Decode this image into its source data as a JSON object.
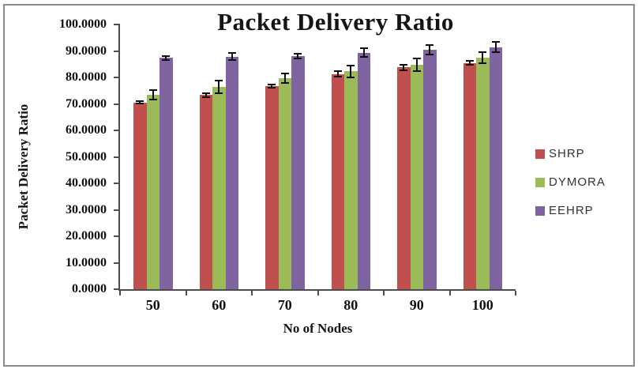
{
  "chart_data": {
    "type": "bar",
    "title": "Packet Delivery Ratio",
    "xlabel": "No of Nodes",
    "ylabel": "Packet Delivery Ratio",
    "categories": [
      "50",
      "60",
      "70",
      "80",
      "90",
      "100"
    ],
    "series": [
      {
        "name": "SHRP",
        "color": "#C0504D",
        "values": [
          70.5,
          73.3,
          76.7,
          81.3,
          83.8,
          85.5
        ],
        "errors": [
          0.8,
          1.1,
          0.8,
          1.3,
          1.4,
          1.0
        ]
      },
      {
        "name": "DYMORA",
        "color": "#9BBB59",
        "values": [
          73.4,
          76.3,
          79.7,
          82.3,
          84.8,
          87.6
        ],
        "errors": [
          2.2,
          2.7,
          2.0,
          2.6,
          2.8,
          2.4
        ]
      },
      {
        "name": "EEHRP",
        "color": "#8064A2",
        "values": [
          87.4,
          87.9,
          88.0,
          89.4,
          90.4,
          91.4
        ],
        "errors": [
          1.0,
          1.7,
          1.2,
          2.0,
          2.2,
          2.2
        ]
      }
    ],
    "ylim": [
      0,
      100
    ],
    "y_tick_step": 10,
    "y_tick_labels": [
      "0.0000",
      "10.0000",
      "20.0000",
      "30.0000",
      "40.0000",
      "50.0000",
      "60.0000",
      "70.0000",
      "80.0000",
      "90.0000",
      "100.0000"
    ],
    "grid": false,
    "error_bars": true,
    "legend_position": "right"
  },
  "style": {
    "axis_line_color": "#4d4d4d",
    "error_bar_color": "#0d0d0d",
    "frame_border_color": "#8a8a8a",
    "background": "#ffffff"
  }
}
